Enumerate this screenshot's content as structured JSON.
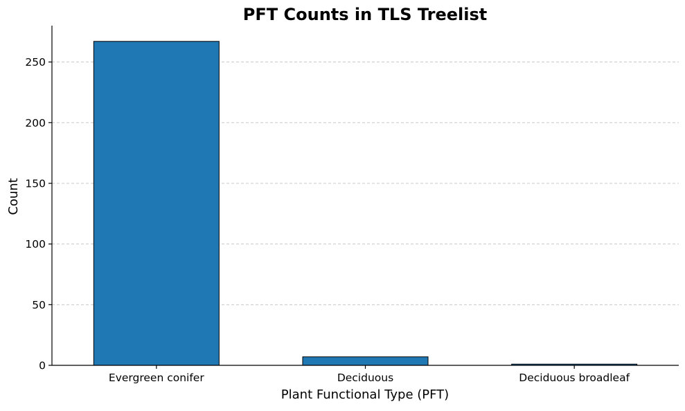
{
  "chart_data": {
    "type": "bar",
    "title": "PFT Counts in TLS Treelist",
    "xlabel": "Plant Functional Type (PFT)",
    "ylabel": "Count",
    "categories": [
      "Evergreen conifer",
      "Deciduous",
      "Deciduous broadleaf"
    ],
    "values": [
      267,
      7,
      1
    ],
    "ylim": [
      0,
      280
    ],
    "yticks": [
      0,
      50,
      100,
      150,
      200,
      250
    ],
    "grid": "y-dashed",
    "bar_color": "#1f77b4",
    "edge_color": "#000000"
  }
}
